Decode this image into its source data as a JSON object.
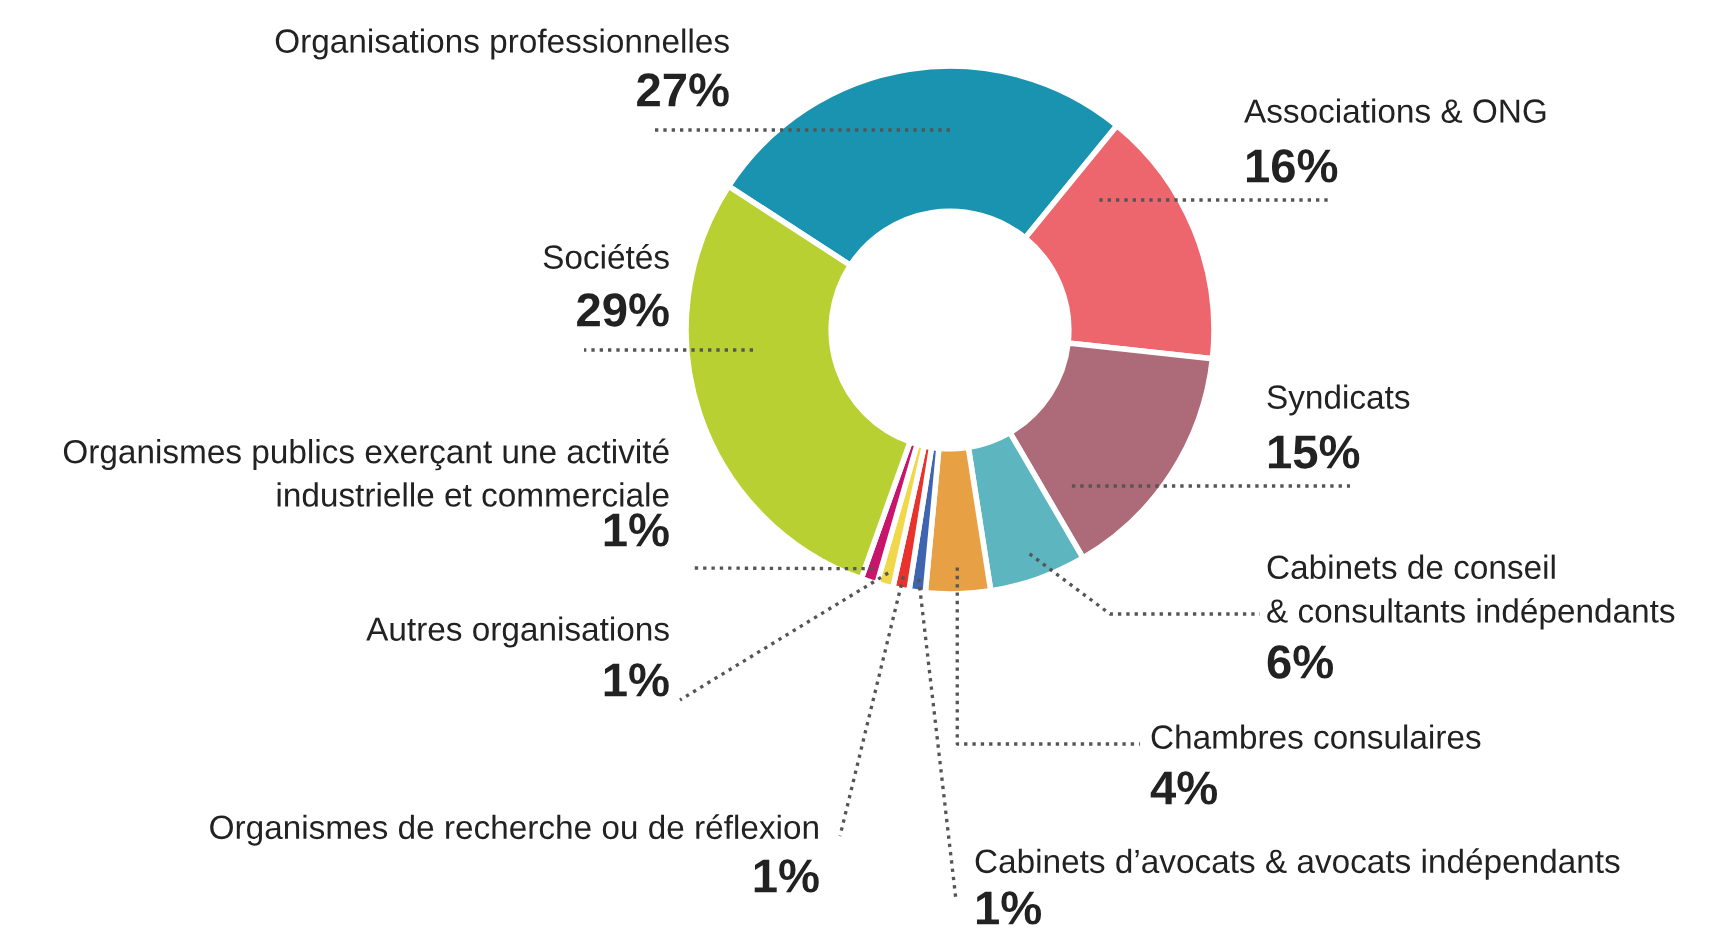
{
  "chart_data": {
    "type": "donut",
    "categories": [
      "Organisations professionnelles",
      "Associations & ONG",
      "Syndicats",
      "Cabinets de conseil\n& consultants indépendants",
      "Chambres consulaires",
      "Cabinets d’avocats & avocats indépendants",
      "Organismes de recherche ou de réflexion",
      "Autres organisations",
      "Organismes publics exerçant une activité\nindustrielle et commerciale",
      "Sociétés"
    ],
    "values": [
      27,
      16,
      15,
      6,
      4,
      1,
      1,
      1,
      1,
      29
    ],
    "value_labels": [
      "27%",
      "16%",
      "15%",
      "6%",
      "4%",
      "1%",
      "1%",
      "1%",
      "1%",
      "29%"
    ],
    "colors": [
      "#1a93b0",
      "#ee666d",
      "#ad6a78",
      "#5db5c0",
      "#e8a045",
      "#3f64b0",
      "#e8322b",
      "#f0d84a",
      "#c8146a",
      "#b8d032"
    ]
  }
}
